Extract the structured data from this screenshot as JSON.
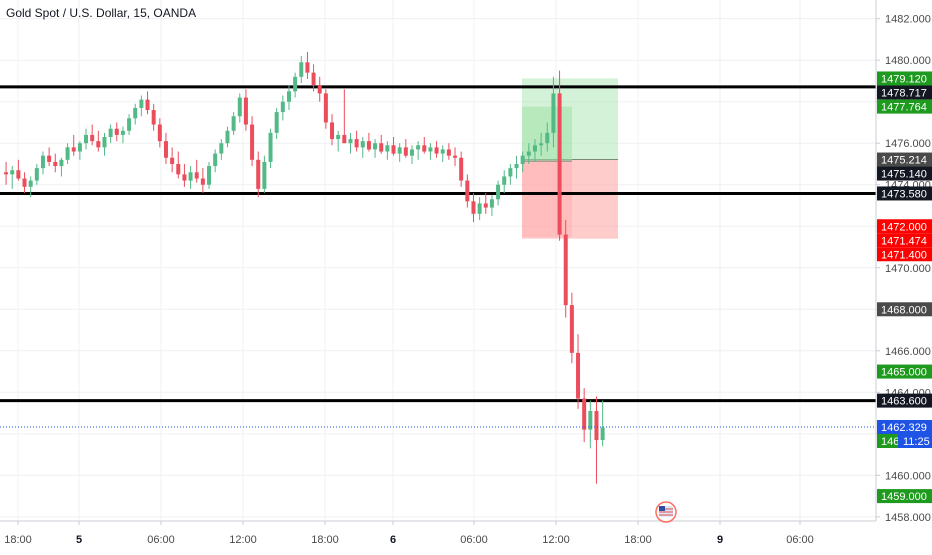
{
  "symbol_title": "Gold Spot / U.S. Dollar, 15, OANDA",
  "colors": {
    "up": "#53b987",
    "down": "#eb4d5c",
    "price_line": "#1e53e5",
    "level_line": "#000000",
    "profit_zone": "#9fe2a8",
    "loss_zone": "#ffaaaa",
    "label_green": "#1e9a1e",
    "label_red": "#ff0000",
    "label_black": "#131722",
    "label_gray": "#4a4a4a",
    "label_blue": "#1e53e5",
    "grid": "#eef0f3"
  },
  "chart_data": {
    "type": "candlestick",
    "title": "Gold Spot / U.S. Dollar, 15, OANDA",
    "ylim": [
      1457.8,
      1482.9
    ],
    "y_ticks": [
      "1458.000",
      "1460.000",
      "1462.000",
      "1464.000",
      "1466.000",
      "1468.000",
      "1470.000",
      "1472.000",
      "1474.000",
      "1476.000",
      "1478.000",
      "1480.000",
      "1482.000"
    ],
    "x_ticks": [
      "18:00",
      "5",
      "06:00",
      "12:00",
      "18:00",
      "6",
      "06:00",
      "12:00",
      "18:00",
      "9",
      "06:00"
    ],
    "horizontal_levels": [
      1478.717,
      1473.58,
      1463.6
    ],
    "current_price": 1462.329,
    "countdown": "11:25",
    "price_labels": [
      {
        "text": "1479.120",
        "value": 1479.12,
        "style": "green"
      },
      {
        "text": "1478.717",
        "value": 1478.717,
        "style": "black"
      },
      {
        "text": "1477.764",
        "value": 1477.764,
        "style": "green"
      },
      {
        "text": "1475.214",
        "value": 1475.214,
        "style": "gray"
      },
      {
        "text": "1475.140",
        "value": 1475.14,
        "style": "black"
      },
      {
        "text": "1473.580",
        "value": 1473.58,
        "style": "black"
      },
      {
        "text": "1472.000",
        "value": 1472.0,
        "style": "red"
      },
      {
        "text": "1471.474",
        "value": 1471.474,
        "style": "red"
      },
      {
        "text": "1471.400",
        "value": 1471.4,
        "style": "red"
      },
      {
        "text": "1468.000",
        "value": 1468.0,
        "style": "gray"
      },
      {
        "text": "1465.000",
        "value": 1465.0,
        "style": "green"
      },
      {
        "text": "1463.600",
        "value": 1463.6,
        "style": "black"
      },
      {
        "text": "1462.329",
        "value": 1462.329,
        "style": "blue"
      },
      {
        "text": "1462.000",
        "value": 1462.0,
        "style": "green"
      },
      {
        "text": "1459.000",
        "value": 1459.0,
        "style": "green"
      }
    ],
    "positions": [
      {
        "kind": "long",
        "entry": 1475.214,
        "target": 1479.12,
        "stop": 1471.4
      },
      {
        "kind": "long",
        "entry": 1475.14,
        "target": 1477.764,
        "stop": 1471.474
      }
    ],
    "candles": [
      [
        1474.6,
        1475.1,
        1474.0,
        1474.5
      ],
      [
        1474.5,
        1474.9,
        1473.8,
        1474.7
      ],
      [
        1474.7,
        1475.2,
        1474.2,
        1474.3
      ],
      [
        1474.3,
        1474.6,
        1473.6,
        1473.9
      ],
      [
        1473.9,
        1474.4,
        1473.4,
        1474.2
      ],
      [
        1474.2,
        1475.0,
        1474.0,
        1474.8
      ],
      [
        1474.8,
        1475.6,
        1474.5,
        1475.4
      ],
      [
        1475.4,
        1475.8,
        1474.9,
        1475.1
      ],
      [
        1475.1,
        1475.5,
        1474.6,
        1474.9
      ],
      [
        1474.9,
        1475.3,
        1474.4,
        1475.2
      ],
      [
        1475.2,
        1476.0,
        1475.0,
        1475.8
      ],
      [
        1475.8,
        1476.4,
        1475.4,
        1475.6
      ],
      [
        1475.6,
        1476.1,
        1475.2,
        1476.0
      ],
      [
        1476.0,
        1476.7,
        1475.7,
        1476.4
      ],
      [
        1476.4,
        1476.9,
        1475.9,
        1476.1
      ],
      [
        1476.1,
        1476.6,
        1475.6,
        1475.8
      ],
      [
        1475.8,
        1476.5,
        1475.4,
        1476.3
      ],
      [
        1476.3,
        1476.9,
        1476.0,
        1476.7
      ],
      [
        1476.7,
        1477.0,
        1476.1,
        1476.4
      ],
      [
        1476.4,
        1476.8,
        1476.0,
        1476.6
      ],
      [
        1476.6,
        1477.4,
        1476.4,
        1477.2
      ],
      [
        1477.2,
        1477.9,
        1476.9,
        1477.7
      ],
      [
        1477.7,
        1478.3,
        1477.3,
        1478.1
      ],
      [
        1478.1,
        1478.5,
        1477.4,
        1477.6
      ],
      [
        1477.6,
        1477.9,
        1476.6,
        1476.9
      ],
      [
        1476.9,
        1477.2,
        1475.8,
        1476.1
      ],
      [
        1476.1,
        1476.5,
        1475.0,
        1475.3
      ],
      [
        1475.3,
        1475.8,
        1474.6,
        1475.0
      ],
      [
        1475.0,
        1475.6,
        1474.3,
        1474.5
      ],
      [
        1474.5,
        1475.0,
        1473.9,
        1474.2
      ],
      [
        1474.2,
        1474.9,
        1473.8,
        1474.6
      ],
      [
        1474.6,
        1475.2,
        1474.1,
        1474.3
      ],
      [
        1474.3,
        1474.8,
        1473.6,
        1474.0
      ],
      [
        1474.0,
        1475.1,
        1473.8,
        1474.9
      ],
      [
        1474.9,
        1475.7,
        1474.6,
        1475.5
      ],
      [
        1475.5,
        1476.2,
        1475.2,
        1476.0
      ],
      [
        1476.0,
        1476.8,
        1475.8,
        1476.6
      ],
      [
        1476.6,
        1477.5,
        1476.4,
        1477.3
      ],
      [
        1477.3,
        1478.4,
        1477.0,
        1478.2
      ],
      [
        1478.2,
        1478.6,
        1476.6,
        1476.9
      ],
      [
        1476.9,
        1477.3,
        1474.9,
        1475.2
      ],
      [
        1475.2,
        1475.6,
        1473.4,
        1473.8
      ],
      [
        1473.8,
        1475.4,
        1473.6,
        1475.1
      ],
      [
        1475.1,
        1476.7,
        1474.8,
        1476.5
      ],
      [
        1476.5,
        1477.7,
        1476.2,
        1477.5
      ],
      [
        1477.5,
        1478.3,
        1477.1,
        1478.0
      ],
      [
        1478.0,
        1478.8,
        1477.6,
        1478.5
      ],
      [
        1478.5,
        1479.4,
        1478.2,
        1479.2
      ],
      [
        1479.2,
        1480.2,
        1478.9,
        1479.9
      ],
      [
        1479.9,
        1480.4,
        1479.1,
        1479.4
      ],
      [
        1479.4,
        1479.8,
        1478.5,
        1478.8
      ],
      [
        1478.8,
        1479.2,
        1478.0,
        1478.4
      ],
      [
        1478.4,
        1478.6,
        1476.7,
        1477.0
      ],
      [
        1477.0,
        1477.4,
        1475.9,
        1476.2
      ],
      [
        1476.2,
        1476.6,
        1475.6,
        1476.4
      ],
      [
        1476.4,
        1478.6,
        1476.2,
        1476.0
      ],
      [
        1476.0,
        1476.5,
        1475.5,
        1476.2
      ],
      [
        1476.2,
        1476.6,
        1475.6,
        1475.8
      ],
      [
        1475.8,
        1476.3,
        1475.3,
        1476.1
      ],
      [
        1476.1,
        1476.5,
        1475.6,
        1475.7
      ],
      [
        1475.7,
        1476.2,
        1475.3,
        1476.0
      ],
      [
        1476.0,
        1476.4,
        1475.5,
        1475.6
      ],
      [
        1475.6,
        1476.1,
        1475.2,
        1475.9
      ],
      [
        1475.9,
        1476.3,
        1475.4,
        1475.5
      ],
      [
        1475.5,
        1476.0,
        1475.1,
        1475.8
      ],
      [
        1475.8,
        1476.2,
        1475.3,
        1475.4
      ],
      [
        1475.4,
        1475.9,
        1475.0,
        1475.7
      ],
      [
        1475.7,
        1476.1,
        1475.2,
        1475.9
      ],
      [
        1475.9,
        1476.3,
        1475.5,
        1475.6
      ],
      [
        1475.6,
        1476.0,
        1475.2,
        1475.8
      ],
      [
        1475.8,
        1476.1,
        1475.3,
        1475.5
      ],
      [
        1475.5,
        1475.9,
        1475.1,
        1475.7
      ],
      [
        1475.7,
        1476.0,
        1475.2,
        1475.4
      ],
      [
        1475.4,
        1475.8,
        1474.9,
        1475.3
      ],
      [
        1475.3,
        1475.6,
        1473.9,
        1474.2
      ],
      [
        1474.2,
        1474.5,
        1472.9,
        1473.2
      ],
      [
        1473.2,
        1473.6,
        1472.2,
        1472.6
      ],
      [
        1472.6,
        1473.4,
        1472.3,
        1473.1
      ],
      [
        1473.1,
        1473.6,
        1472.6,
        1472.9
      ],
      [
        1472.9,
        1473.5,
        1472.5,
        1473.3
      ],
      [
        1473.3,
        1474.2,
        1473.0,
        1474.0
      ],
      [
        1474.0,
        1474.7,
        1473.6,
        1474.4
      ],
      [
        1474.4,
        1475.0,
        1474.0,
        1474.8
      ],
      [
        1474.8,
        1475.4,
        1474.3,
        1475.0
      ],
      [
        1475.0,
        1475.6,
        1474.6,
        1475.4
      ],
      [
        1475.4,
        1476.0,
        1475.0,
        1475.6
      ],
      [
        1475.6,
        1476.2,
        1475.1,
        1475.9
      ],
      [
        1475.9,
        1476.5,
        1475.4,
        1476.0
      ],
      [
        1476.0,
        1477.0,
        1475.6,
        1476.5
      ],
      [
        1476.5,
        1479.2,
        1475.8,
        1478.4
      ],
      [
        1478.4,
        1479.5,
        1471.3,
        1471.6
      ],
      [
        1471.6,
        1472.3,
        1467.6,
        1468.2
      ],
      [
        1468.2,
        1468.8,
        1465.4,
        1465.9
      ],
      [
        1465.9,
        1466.8,
        1463.2,
        1463.7
      ],
      [
        1463.7,
        1464.2,
        1461.6,
        1462.2
      ],
      [
        1462.2,
        1463.6,
        1461.3,
        1463.1
      ],
      [
        1463.1,
        1463.8,
        1459.6,
        1461.7
      ],
      [
        1461.7,
        1463.6,
        1461.4,
        1462.3
      ]
    ]
  }
}
